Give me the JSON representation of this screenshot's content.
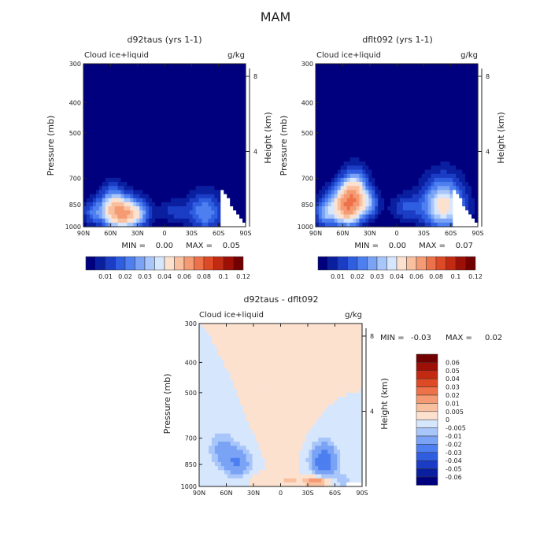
{
  "title": "MAM",
  "colors": {
    "pos_scale": [
      "#00007f",
      "#0a1fa0",
      "#1b3cc4",
      "#2f5ee0",
      "#4d7ff0",
      "#7aa3f5",
      "#a9c6fa",
      "#d6e6fd",
      "#fde1cf",
      "#f9c0a0",
      "#f59b73",
      "#ee7249",
      "#de4a26",
      "#c22a12",
      "#9e1005",
      "#720000"
    ],
    "diff_scale": [
      "#00007f",
      "#0a1fa0",
      "#1b3cc4",
      "#2f5ee0",
      "#4d7ff0",
      "#7aa3f5",
      "#a9c6fa",
      "#d6e6fd",
      "#fde1cf",
      "#f9c0a0",
      "#f59b73",
      "#ee7249",
      "#de4a26",
      "#c22a12",
      "#9e1005",
      "#720000"
    ]
  },
  "chart_data": [
    {
      "type": "heatmap",
      "id": "left",
      "title": "d92taus (yrs 1-1)",
      "left_label": "Cloud ice+liquid",
      "units": "g/kg",
      "ylabel": "Pressure (mb)",
      "y2label": "Height (km)",
      "x_ticks": [
        "90N",
        "60N",
        "30N",
        "0",
        "30S",
        "60S",
        "90S"
      ],
      "y_ticks": [
        "300",
        "400",
        "500",
        "700",
        "850",
        "1000"
      ],
      "y2_ticks": [
        "8",
        "4"
      ],
      "stats": {
        "min_label": "MIN =",
        "min": "0.00",
        "max_label": "MAX =",
        "max": "0.05"
      },
      "colorbar": [
        "0.01",
        "0.02",
        "0.03",
        "0.04",
        "0.06",
        "0.08",
        "0.1",
        "0.12"
      ],
      "features": [
        {
          "lat": 40,
          "p": 910,
          "sx": 14,
          "sp": 70,
          "v": 0.055
        },
        {
          "lat": 58,
          "p": 870,
          "sx": 10,
          "sp": 90,
          "v": 0.035
        },
        {
          "lat": -45,
          "p": 900,
          "sx": 14,
          "sp": 90,
          "v": 0.025
        },
        {
          "lat": -10,
          "p": 890,
          "sx": 10,
          "sp": 50,
          "v": 0.012
        },
        {
          "lat": 80,
          "p": 900,
          "sx": 8,
          "sp": 60,
          "v": 0.018
        }
      ],
      "max_value": 0.05
    },
    {
      "type": "heatmap",
      "id": "right",
      "title": "dflt092 (yrs 1-1)",
      "left_label": "Cloud ice+liquid",
      "units": "g/kg",
      "ylabel": "Pressure (mb)",
      "y2label": "Height (km)",
      "x_ticks": [
        "90N",
        "60N",
        "30N",
        "0",
        "30S",
        "60S",
        "90S"
      ],
      "y_ticks": [
        "300",
        "400",
        "500",
        "700",
        "850",
        "1000"
      ],
      "y2_ticks": [
        "8",
        "4"
      ],
      "stats": {
        "min_label": "MIN =",
        "min": "0.00",
        "max_label": "MAX =",
        "max": "0.07"
      },
      "colorbar": [
        "0.01",
        "0.02",
        "0.03",
        "0.04",
        "0.06",
        "0.08",
        "0.1",
        "0.12"
      ],
      "features": [
        {
          "lat": 55,
          "p": 860,
          "sx": 12,
          "sp": 90,
          "v": 0.065
        },
        {
          "lat": 45,
          "p": 760,
          "sx": 10,
          "sp": 80,
          "v": 0.03
        },
        {
          "lat": -52,
          "p": 855,
          "sx": 16,
          "sp": 110,
          "v": 0.045
        },
        {
          "lat": -10,
          "p": 870,
          "sx": 12,
          "sp": 60,
          "v": 0.015
        },
        {
          "lat": 80,
          "p": 900,
          "sx": 8,
          "sp": 70,
          "v": 0.025
        },
        {
          "lat": 30,
          "p": 850,
          "sx": 8,
          "sp": 60,
          "v": 0.02
        }
      ],
      "max_value": 0.07
    },
    {
      "type": "heatmap",
      "id": "diff",
      "title": "d92taus - dflt092",
      "left_label": "Cloud ice+liquid",
      "units": "g/kg",
      "ylabel": "Pressure (mb)",
      "y2label": "Height (km)",
      "x_ticks": [
        "90N",
        "60N",
        "30N",
        "0",
        "30S",
        "60S",
        "90S"
      ],
      "y_ticks": [
        "300",
        "400",
        "500",
        "700",
        "850",
        "1000"
      ],
      "y2_ticks": [
        "8",
        "4"
      ],
      "stats": {
        "min_label": "MIN =",
        "min": "-0.03",
        "max_label": "MAX =",
        "max": "0.02"
      },
      "colorbar": [
        "0.06",
        "0.05",
        "0.04",
        "0.03",
        "0.02",
        "0.01",
        "0.005",
        "0",
        "-0.005",
        "-0.01",
        "-0.02",
        "-0.03",
        "-0.04",
        "-0.05",
        "-0.06"
      ],
      "features": [
        {
          "lat": -48,
          "p": 830,
          "sx": 10,
          "sp": 70,
          "v": -0.03
        },
        {
          "lat": 48,
          "p": 840,
          "sx": 10,
          "sp": 60,
          "v": -0.02
        },
        {
          "lat": 65,
          "p": 760,
          "sx": 10,
          "sp": 70,
          "v": -0.012
        },
        {
          "lat": -40,
          "p": 960,
          "sx": 10,
          "sp": 25,
          "v": 0.018
        },
        {
          "lat": -10,
          "p": 955,
          "sx": 6,
          "sp": 20,
          "v": 0.009
        },
        {
          "lat": 20,
          "p": 950,
          "sx": 10,
          "sp": 25,
          "v": 0.004
        },
        {
          "lat": -5,
          "p": 550,
          "sx": 14,
          "sp": 170,
          "v": 0.004
        },
        {
          "lat": -70,
          "p": 960,
          "sx": 8,
          "sp": 30,
          "v": -0.008
        }
      ],
      "max_value": 0.02
    }
  ]
}
